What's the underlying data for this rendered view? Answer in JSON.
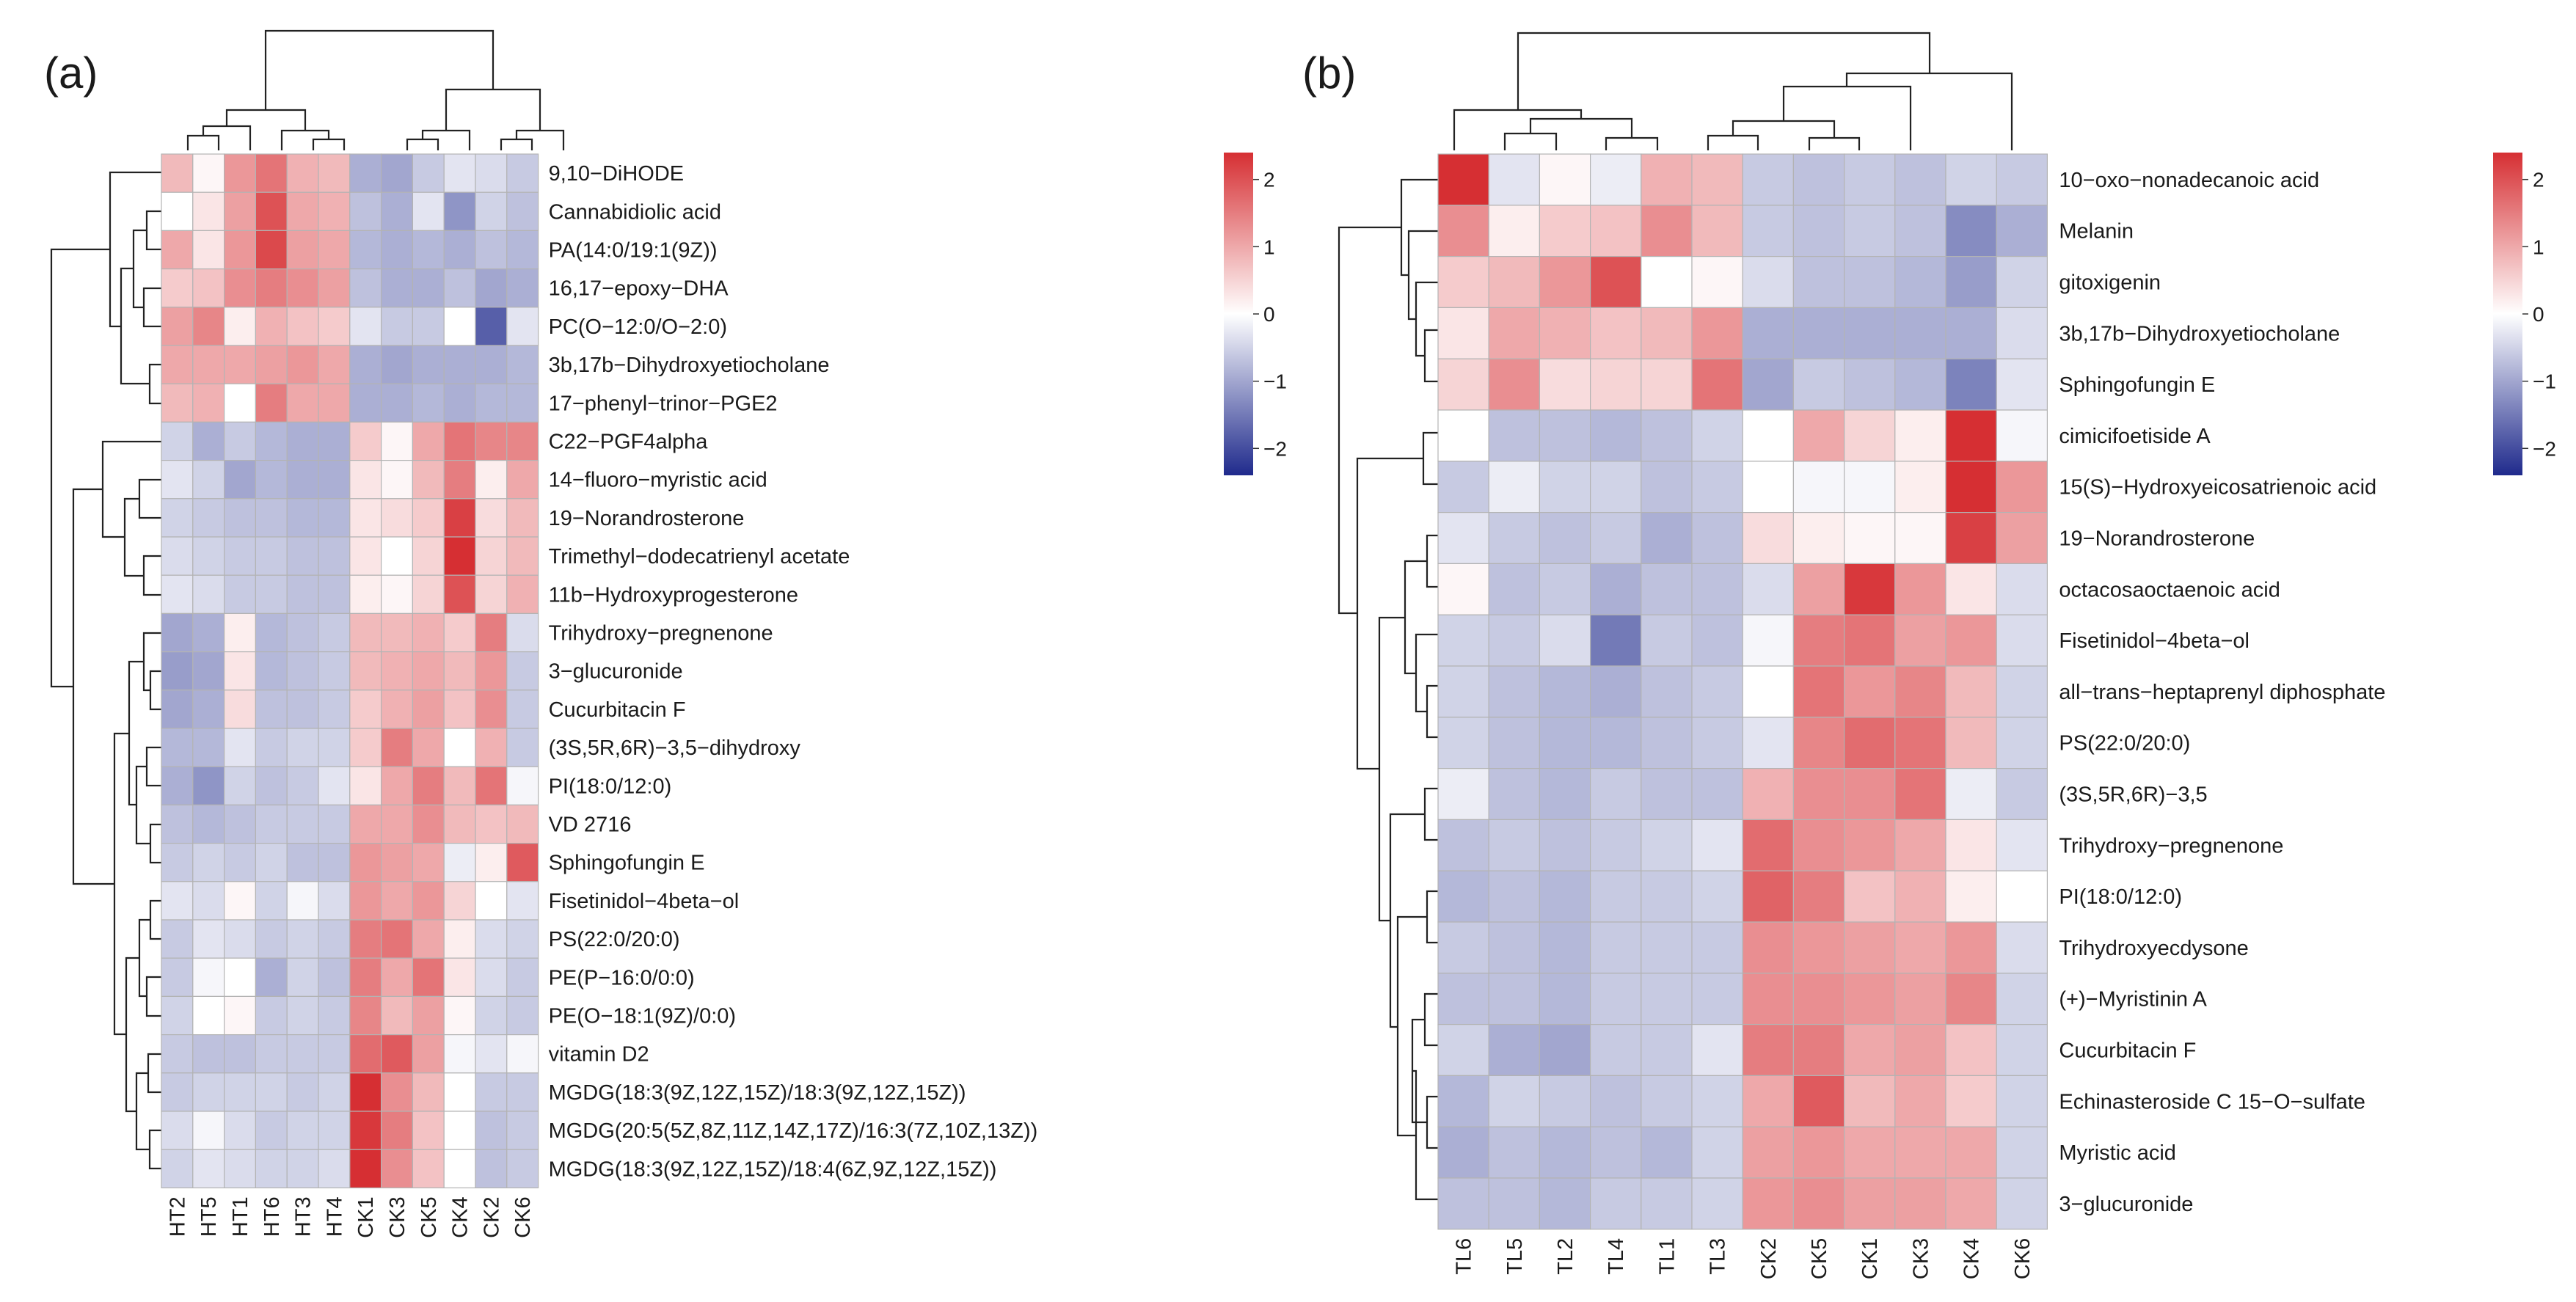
{
  "chart_data": [
    {
      "type": "heatmap",
      "panel_label": "(a)",
      "columns": [
        "HT2",
        "HT5",
        "HT1",
        "HT6",
        "HT3",
        "HT4",
        "CK1",
        "CK3",
        "CK5",
        "CK4",
        "CK2",
        "CK6"
      ],
      "rows": [
        "9,10−DiHODE",
        "Cannabidiolic acid",
        "PA(14:0/19:1(9Z))",
        "16,17−epoxy−DHA",
        "PC(O−12:0/O−2:0)",
        "3b,17b−Dihydroxyetiocholane",
        "17−phenyl−trinor−PGE2",
        "C22−PGF4alpha",
        "14−fluoro−myristic acid",
        "19−Norandrosterone",
        "Trimethyl−dodecatrienyl acetate",
        "11b−Hydroxyprogesterone",
        "Trihydroxy−pregnenone",
        "3−glucuronide",
        "Cucurbitacin F",
        "(3S,5R,6R)−3,5−dihydroxy",
        "PI(18:0/12:0)",
        "VD 2716",
        "Sphingofungin E",
        "Fisetinidol−4beta−ol",
        "PS(22:0/20:0)",
        "PE(P−16:0/0:0)",
        "PE(O−18:1(9Z)/0:0)",
        "vitamin D2",
        "MGDG(18:3(9Z,12Z,15Z)/18:3(9Z,12Z,15Z))",
        "MGDG(20:5(5Z,8Z,11Z,14Z,17Z)/16:3(7Z,10Z,13Z))",
        "MGDG(18:3(9Z,12Z,15Z)/18:4(6Z,9Z,12Z,15Z))"
      ],
      "values": [
        [
          0.8,
          0.1,
          1.2,
          1.6,
          0.9,
          0.8,
          -0.9,
          -1.0,
          -0.6,
          -0.3,
          -0.4,
          -0.6
        ],
        [
          0.0,
          0.3,
          1.1,
          2.0,
          1.0,
          0.9,
          -0.7,
          -0.9,
          -0.3,
          -1.2,
          -0.5,
          -0.7
        ],
        [
          1.0,
          0.3,
          1.2,
          2.1,
          1.1,
          1.0,
          -0.8,
          -0.9,
          -0.8,
          -0.9,
          -0.7,
          -0.8
        ],
        [
          0.6,
          0.7,
          1.3,
          1.5,
          1.3,
          1.1,
          -0.7,
          -0.9,
          -0.9,
          -0.7,
          -1.0,
          -0.9
        ],
        [
          1.1,
          1.4,
          0.2,
          0.9,
          0.7,
          0.6,
          -0.3,
          -0.6,
          -0.6,
          0.0,
          -1.8,
          -0.3
        ],
        [
          1.0,
          1.0,
          1.0,
          1.1,
          1.2,
          1.0,
          -0.9,
          -1.0,
          -0.9,
          -0.9,
          -0.9,
          -0.8
        ],
        [
          0.8,
          0.9,
          0.0,
          1.5,
          1.0,
          1.0,
          -0.9,
          -0.9,
          -0.8,
          -0.9,
          -0.8,
          -0.8
        ],
        [
          -0.5,
          -0.9,
          -0.6,
          -0.8,
          -0.9,
          -0.9,
          0.6,
          0.1,
          1.0,
          1.6,
          1.4,
          1.4
        ],
        [
          -0.3,
          -0.5,
          -1.0,
          -0.8,
          -0.9,
          -0.9,
          0.3,
          0.1,
          0.8,
          1.5,
          0.2,
          1.0
        ],
        [
          -0.5,
          -0.6,
          -0.7,
          -0.7,
          -0.8,
          -0.8,
          0.3,
          0.4,
          0.6,
          2.2,
          0.4,
          0.8
        ],
        [
          -0.4,
          -0.5,
          -0.6,
          -0.6,
          -0.7,
          -0.7,
          0.3,
          0.0,
          0.5,
          2.5,
          0.5,
          0.8
        ],
        [
          -0.3,
          -0.4,
          -0.6,
          -0.6,
          -0.7,
          -0.7,
          0.2,
          0.1,
          0.5,
          2.0,
          0.5,
          0.9
        ],
        [
          -1.0,
          -0.9,
          0.2,
          -0.8,
          -0.7,
          -0.6,
          0.8,
          0.8,
          0.9,
          0.6,
          1.5,
          -0.4
        ],
        [
          -1.1,
          -1.0,
          0.3,
          -0.8,
          -0.7,
          -0.6,
          0.8,
          0.9,
          1.0,
          0.8,
          1.2,
          -0.6
        ],
        [
          -1.0,
          -0.9,
          0.4,
          -0.7,
          -0.7,
          -0.6,
          0.6,
          0.9,
          1.1,
          0.7,
          1.3,
          -0.6
        ],
        [
          -0.8,
          -0.8,
          -0.3,
          -0.6,
          -0.5,
          -0.5,
          0.6,
          1.5,
          1.0,
          0.0,
          0.9,
          -0.6
        ],
        [
          -0.9,
          -1.2,
          -0.5,
          -0.7,
          -0.6,
          -0.3,
          0.3,
          1.0,
          1.5,
          0.8,
          1.6,
          -0.1
        ],
        [
          -0.7,
          -0.8,
          -0.7,
          -0.6,
          -0.6,
          -0.6,
          1.0,
          1.0,
          1.3,
          0.8,
          0.7,
          0.8
        ],
        [
          -0.6,
          -0.5,
          -0.6,
          -0.5,
          -0.7,
          -0.7,
          1.2,
          1.1,
          1.0,
          -0.2,
          0.2,
          1.9
        ],
        [
          -0.3,
          -0.4,
          0.1,
          -0.5,
          -0.1,
          -0.4,
          1.2,
          1.0,
          1.2,
          0.5,
          0.0,
          -0.3
        ],
        [
          -0.6,
          -0.3,
          -0.4,
          -0.6,
          -0.5,
          -0.6,
          1.5,
          1.6,
          1.0,
          0.2,
          -0.4,
          -0.5
        ],
        [
          -0.6,
          -0.1,
          0.0,
          -0.9,
          -0.5,
          -0.7,
          1.5,
          1.0,
          1.6,
          0.3,
          -0.4,
          -0.6
        ],
        [
          -0.5,
          0.0,
          0.1,
          -0.6,
          -0.5,
          -0.6,
          1.4,
          0.8,
          1.1,
          0.1,
          -0.5,
          -0.6
        ],
        [
          -0.6,
          -0.7,
          -0.7,
          -0.6,
          -0.6,
          -0.6,
          1.7,
          1.9,
          1.1,
          -0.1,
          -0.3,
          -0.1
        ],
        [
          -0.6,
          -0.5,
          -0.5,
          -0.5,
          -0.6,
          -0.5,
          2.5,
          1.3,
          0.8,
          0.0,
          -0.6,
          -0.6
        ],
        [
          -0.4,
          -0.1,
          -0.4,
          -0.6,
          -0.5,
          -0.5,
          2.3,
          1.5,
          0.7,
          0.0,
          -0.7,
          -0.6
        ],
        [
          -0.5,
          -0.3,
          -0.4,
          -0.5,
          -0.5,
          -0.4,
          2.4,
          1.3,
          0.7,
          0.0,
          -0.7,
          -0.6
        ]
      ],
      "legend_ticks": [
        2,
        1,
        0,
        -1,
        -2
      ],
      "value_range": [
        -2.4,
        2.4
      ]
    },
    {
      "type": "heatmap",
      "panel_label": "(b)",
      "columns": [
        "TL6",
        "TL5",
        "TL2",
        "TL4",
        "TL1",
        "TL3",
        "CK2",
        "CK5",
        "CK1",
        "CK3",
        "CK4",
        "CK6"
      ],
      "rows": [
        "10−oxo−nonadecanoic acid",
        "Melanin",
        "gitoxigenin",
        "3b,17b−Dihydroxyetiocholane",
        "Sphingofungin E",
        "cimicifoetiside A",
        "15(S)−Hydroxyeicosatrienoic acid",
        "19−Norandrosterone",
        "octacosaoctaenoic acid",
        "Fisetinidol−4beta−ol",
        "all−trans−heptaprenyl diphosphate",
        "PS(22:0/20:0)",
        "(3S,5R,6R)−3,5",
        "Trihydroxy−pregnenone",
        "PI(18:0/12:0)",
        "Trihydroxyecdysone",
        "(+)−Myristinin A",
        "Cucurbitacin F",
        "Echinasteroside C 15−O−sulfate",
        "Myristic acid",
        "3−glucuronide"
      ],
      "values": [
        [
          2.4,
          -0.3,
          0.1,
          -0.2,
          0.9,
          0.8,
          -0.6,
          -0.7,
          -0.6,
          -0.7,
          -0.5,
          -0.6
        ],
        [
          1.3,
          0.2,
          0.6,
          0.7,
          1.3,
          0.8,
          -0.6,
          -0.7,
          -0.6,
          -0.7,
          -1.3,
          -0.9
        ],
        [
          0.6,
          0.8,
          1.2,
          2.0,
          0.0,
          0.1,
          -0.4,
          -0.7,
          -0.7,
          -0.8,
          -1.1,
          -0.5
        ],
        [
          0.3,
          1.0,
          0.9,
          0.7,
          0.8,
          1.2,
          -0.9,
          -0.9,
          -0.9,
          -0.9,
          -0.9,
          -0.4
        ],
        [
          0.5,
          1.3,
          0.4,
          0.5,
          0.5,
          1.6,
          -1.0,
          -0.6,
          -0.7,
          -0.8,
          -1.4,
          -0.3
        ],
        [
          0.0,
          -0.7,
          -0.7,
          -0.8,
          -0.7,
          -0.5,
          0.0,
          1.0,
          0.5,
          0.2,
          2.4,
          -0.1
        ],
        [
          -0.6,
          -0.2,
          -0.5,
          -0.5,
          -0.7,
          -0.6,
          0.0,
          -0.1,
          -0.1,
          0.2,
          2.4,
          1.2
        ],
        [
          -0.3,
          -0.6,
          -0.7,
          -0.6,
          -0.9,
          -0.7,
          0.4,
          0.2,
          0.1,
          0.1,
          2.2,
          1.1
        ],
        [
          0.1,
          -0.7,
          -0.6,
          -0.9,
          -0.7,
          -0.7,
          -0.4,
          1.1,
          2.3,
          1.2,
          0.3,
          -0.4
        ],
        [
          -0.5,
          -0.6,
          -0.4,
          -1.5,
          -0.6,
          -0.7,
          -0.1,
          1.5,
          1.6,
          1.1,
          1.2,
          -0.4
        ],
        [
          -0.5,
          -0.7,
          -0.8,
          -0.9,
          -0.7,
          -0.6,
          0.0,
          1.6,
          1.2,
          1.4,
          0.8,
          -0.5
        ],
        [
          -0.5,
          -0.7,
          -0.8,
          -0.8,
          -0.7,
          -0.6,
          -0.3,
          1.4,
          1.7,
          1.6,
          0.8,
          -0.5
        ],
        [
          -0.2,
          -0.7,
          -0.8,
          -0.6,
          -0.7,
          -0.7,
          0.9,
          1.3,
          1.3,
          1.6,
          -0.2,
          -0.6
        ],
        [
          -0.7,
          -0.6,
          -0.7,
          -0.6,
          -0.5,
          -0.3,
          1.7,
          1.3,
          1.2,
          1.0,
          0.3,
          -0.3
        ],
        [
          -0.8,
          -0.7,
          -0.8,
          -0.6,
          -0.6,
          -0.5,
          1.8,
          1.5,
          0.7,
          0.9,
          0.2,
          0.0
        ],
        [
          -0.6,
          -0.7,
          -0.8,
          -0.6,
          -0.6,
          -0.6,
          1.3,
          1.2,
          1.1,
          1.0,
          1.2,
          -0.4
        ],
        [
          -0.7,
          -0.7,
          -0.8,
          -0.6,
          -0.6,
          -0.6,
          1.3,
          1.3,
          1.2,
          1.1,
          1.4,
          -0.5
        ],
        [
          -0.5,
          -0.9,
          -1.0,
          -0.6,
          -0.6,
          -0.3,
          1.5,
          1.5,
          1.0,
          1.1,
          0.7,
          -0.5
        ],
        [
          -0.8,
          -0.5,
          -0.6,
          -0.7,
          -0.6,
          -0.5,
          1.0,
          1.9,
          0.8,
          1.0,
          0.6,
          -0.5
        ],
        [
          -0.9,
          -0.7,
          -0.8,
          -0.7,
          -0.8,
          -0.5,
          1.1,
          1.2,
          1.0,
          1.0,
          1.0,
          -0.5
        ],
        [
          -0.7,
          -0.7,
          -0.8,
          -0.6,
          -0.6,
          -0.5,
          1.2,
          1.3,
          1.1,
          1.1,
          1.0,
          -0.5
        ]
      ],
      "legend_ticks": [
        2,
        1,
        0,
        -1,
        -2
      ],
      "value_range": [
        -2.4,
        2.4
      ]
    }
  ]
}
